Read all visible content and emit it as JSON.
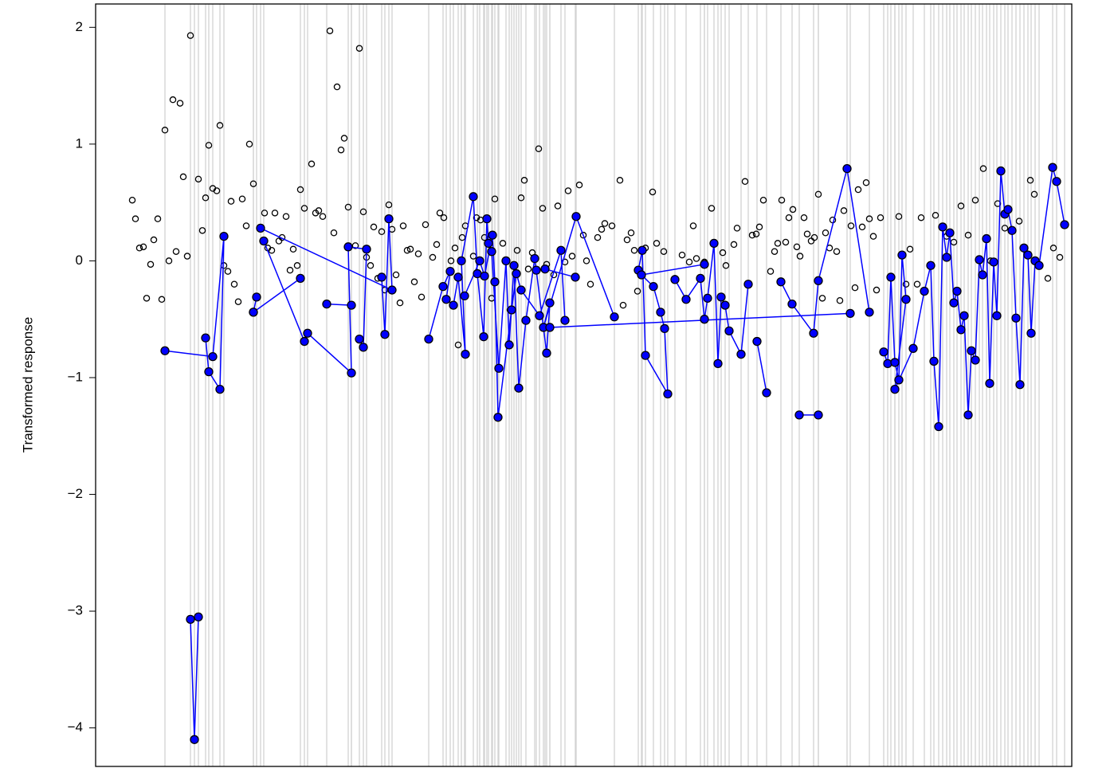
{
  "chart_data": {
    "type": "scatter",
    "ylabel": "Transformed response",
    "xlim": [
      0,
      1225
    ],
    "ylim": [
      -4.33,
      2.2
    ],
    "yticks": [
      {
        "value": -4,
        "label": "−4"
      },
      {
        "value": -3,
        "label": "−3"
      },
      {
        "value": -2,
        "label": "−2"
      },
      {
        "value": -1,
        "label": "−1"
      },
      0,
      1,
      2
    ],
    "series": [
      {
        "style": "open",
        "color": "#000000",
        "x": [
          46,
          50,
          55,
          60,
          64,
          69,
          73,
          78,
          83,
          87,
          92,
          97,
          101,
          106,
          110,
          115,
          119,
          129,
          134,
          138,
          142,
          147,
          152,
          156,
          161,
          166,
          170,
          174,
          179,
          184,
          189,
          193,
          198,
          212,
          216,
          221,
          225,
          230,
          234,
          239,
          244,
          248,
          253,
          257,
          262,
          271,
          276,
          280,
          285,
          294,
          299,
          303,
          308,
          312,
          317,
          326,
          331,
          336,
          340,
          345,
          349,
          354,
          359,
          363,
          368,
          372,
          377,
          382,
          386,
          391,
          395,
          400,
          405,
          409,
          414,
          423,
          428,
          432,
          437,
          446,
          451,
          455,
          460,
          464,
          474,
          478,
          483,
          488,
          497,
          501,
          511,
          520,
          529,
          534,
          538,
          543,
          548,
          556,
          561,
          566,
          575,
          580,
          589,
          593,
          598,
          607,
          612,
          616,
          621,
          630,
          635,
          639,
          648,
          658,
          662,
          667,
          672,
          676,
          680,
          690,
          699,
          704,
          713,
          727,
          736,
          745,
          750,
          754,
          764,
          773,
          787,
          791,
          801,
          805,
          815,
          824,
          829,
          833,
          838,
          847,
          852,
          856,
          861,
          866,
          870,
          875,
          880,
          884,
          889,
          893,
          898,
          902,
          907,
          912,
          916,
          921,
          925,
          930,
          934,
          939,
          948,
          953,
          957,
          962,
          967,
          971,
          976,
          980,
          985,
          1008,
          1017,
          1022,
          1031,
          1036,
          1054,
          1068,
          1077,
          1086,
          1095,
          1104,
          1114,
          1123,
          1132,
          1141,
          1159,
          1173,
          1178,
          1195,
          1202,
          1210
        ],
        "values": [
          0.52,
          0.36,
          0.11,
          0.12,
          -0.32,
          -0.03,
          0.18,
          0.36,
          -0.33,
          1.12,
          0.0,
          1.38,
          0.08,
          1.35,
          0.72,
          0.04,
          1.93,
          0.7,
          0.26,
          0.54,
          0.99,
          0.62,
          0.6,
          1.16,
          -0.04,
          -0.09,
          0.51,
          -0.2,
          -0.35,
          0.53,
          0.3,
          1.0,
          0.66,
          0.41,
          0.11,
          0.09,
          0.41,
          0.17,
          0.2,
          0.38,
          -0.08,
          0.1,
          -0.04,
          0.61,
          0.45,
          0.83,
          0.41,
          0.43,
          0.38,
          1.97,
          0.24,
          1.49,
          0.95,
          1.05,
          0.46,
          0.13,
          1.82,
          0.42,
          0.03,
          -0.04,
          0.29,
          -0.15,
          0.25,
          -0.25,
          0.48,
          0.27,
          -0.12,
          -0.36,
          0.3,
          0.09,
          0.1,
          -0.18,
          0.06,
          -0.31,
          0.31,
          0.03,
          0.14,
          0.41,
          0.37,
          0.0,
          0.11,
          -0.72,
          0.2,
          0.3,
          0.04,
          0.37,
          0.35,
          0.2,
          -0.32,
          0.53,
          0.15,
          -0.42,
          0.09,
          0.54,
          0.69,
          -0.07,
          0.07,
          0.96,
          0.45,
          -0.03,
          -0.12,
          0.47,
          -0.01,
          0.6,
          0.04,
          0.65,
          0.22,
          0.0,
          -0.2,
          0.2,
          0.27,
          0.32,
          0.3,
          0.69,
          -0.38,
          0.18,
          0.24,
          0.09,
          -0.26,
          0.11,
          0.59,
          0.15,
          0.08,
          -0.15,
          0.05,
          -0.01,
          0.3,
          0.02,
          -0.01,
          0.45,
          0.07,
          -0.04,
          0.14,
          0.28,
          0.68,
          0.22,
          0.23,
          0.29,
          0.52,
          -0.09,
          0.08,
          0.15,
          0.52,
          0.16,
          0.37,
          0.44,
          0.12,
          0.04,
          0.37,
          0.23,
          0.17,
          0.2,
          0.57,
          -0.32,
          0.24,
          0.11,
          0.35,
          0.08,
          -0.34,
          0.43,
          0.3,
          -0.23,
          0.61,
          0.29,
          0.67,
          0.36,
          0.21,
          -0.25,
          0.37,
          0.38,
          -0.2,
          0.1,
          -0.2,
          0.37,
          0.39,
          0.21,
          0.16,
          0.47,
          0.22,
          0.52,
          0.79,
          0.0,
          0.49,
          0.28,
          0.34,
          0.69,
          0.57,
          -0.15,
          0.11,
          0.03
        ]
      },
      {
        "style": "connected",
        "color": "#0000ff",
        "x": [
          87,
          147,
          161,
          156,
          142,
          138,
          null,
          119,
          124,
          129,
          null,
          198,
          202,
          null,
          207,
          372,
          368,
          363,
          359,
          null,
          211,
          262,
          266,
          321,
          317,
          340,
          336,
          331,
          null,
          257,
          198,
          null,
          290,
          321,
          null,
          418,
          436,
          445,
          440,
          449,
          455,
          464,
          459,
          474,
          479,
          487,
          491,
          493,
          497,
          506,
          515,
          519,
          525,
          531,
          540,
          551,
          553,
          566,
          570,
          562,
          603,
          651,
          null,
          463,
          482,
          488,
          498,
          501,
          505,
          522,
          528,
          534,
          557,
          584,
          589,
          null,
          602,
          564,
          null,
          681,
          686,
          690,
          718,
          714,
          709,
          700,
          685,
          764,
          null,
          727,
          741,
          759,
          764,
          768,
          776,
          781,
          785,
          790,
          795,
          810,
          819,
          null,
          830,
          842,
          null,
          860,
          874,
          901,
          907,
          943,
          971,
          null,
          883,
          907,
          null,
          570,
          947,
          null,
          989,
          994,
          998,
          1003,
          1008,
          1012,
          1017,
          1003,
          1026,
          1040,
          1048,
          1052,
          1058,
          1063,
          1068,
          1072,
          1077,
          1081,
          1086,
          1090,
          1095,
          1099,
          1104,
          1109,
          1113,
          1118,
          1122,
          1127,
          1131,
          1136,
          1141,
          1145,
          1150,
          1155,
          1160,
          1165,
          1170,
          1174,
          1179,
          1184,
          1201,
          1206,
          1216
        ],
        "values": [
          -0.77,
          -0.82,
          0.21,
          -1.1,
          -0.95,
          -0.66,
          null,
          -3.07,
          -4.1,
          -3.05,
          null,
          -0.44,
          -0.31,
          null,
          0.28,
          -0.25,
          0.36,
          -0.63,
          -0.14,
          null,
          0.17,
          -0.69,
          -0.62,
          -0.96,
          0.12,
          0.1,
          -0.74,
          -0.67,
          null,
          -0.15,
          -0.44,
          null,
          -0.37,
          -0.38,
          null,
          -0.67,
          -0.22,
          -0.09,
          -0.33,
          -0.38,
          -0.14,
          -0.8,
          0.0,
          0.55,
          -0.11,
          -0.65,
          0.36,
          0.15,
          0.08,
          -0.92,
          0.0,
          -0.72,
          -0.04,
          -1.09,
          -0.51,
          0.02,
          -0.08,
          -0.79,
          -0.36,
          -0.57,
          0.38,
          -0.48,
          null,
          -0.3,
          0.0,
          -0.13,
          0.22,
          -0.18,
          -1.34,
          -0.42,
          -0.11,
          -0.25,
          -0.47,
          0.09,
          -0.51,
          null,
          -0.14,
          -0.07,
          null,
          -0.08,
          0.09,
          -0.81,
          -1.14,
          -0.58,
          -0.44,
          -0.22,
          -0.12,
          -0.03,
          null,
          -0.16,
          -0.33,
          -0.15,
          -0.5,
          -0.32,
          0.15,
          -0.88,
          -0.31,
          -0.38,
          -0.6,
          -0.8,
          -0.2,
          null,
          -0.69,
          -1.13,
          null,
          -0.18,
          -0.37,
          -0.62,
          -0.17,
          0.79,
          -0.44,
          null,
          -1.32,
          -1.32,
          null,
          -0.57,
          -0.45,
          null,
          -0.78,
          -0.88,
          -0.14,
          -0.87,
          -1.02,
          0.05,
          -0.33,
          -1.1,
          -0.75,
          -0.26,
          -0.04,
          -0.86,
          -1.42,
          0.29,
          0.03,
          0.24,
          -0.36,
          -0.26,
          -0.59,
          -0.47,
          -1.32,
          -0.77,
          -0.85,
          0.01,
          -0.12,
          0.19,
          -1.05,
          -0.01,
          -0.47,
          0.77,
          0.4,
          0.44,
          0.26,
          -0.49,
          -1.06,
          0.11,
          0.05,
          -0.62,
          0.0,
          -0.04,
          0.8,
          0.68,
          0.31
        ]
      }
    ]
  }
}
